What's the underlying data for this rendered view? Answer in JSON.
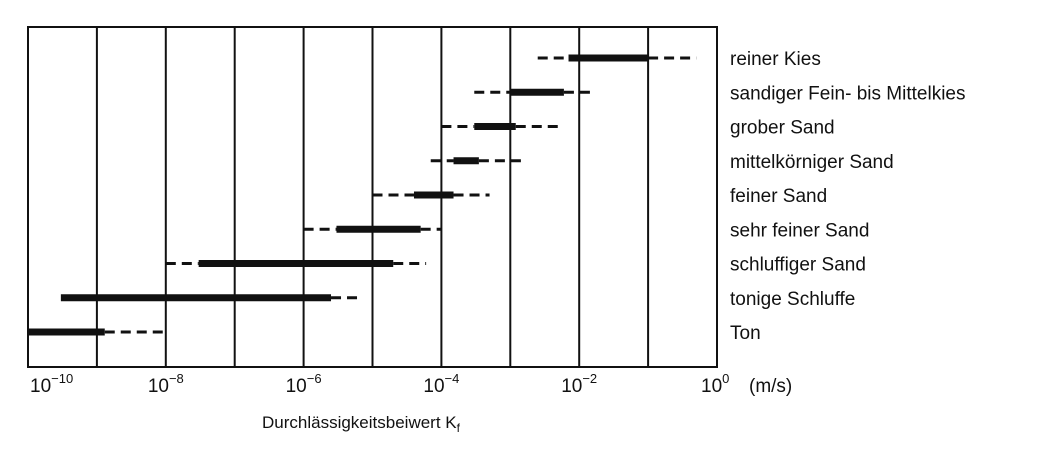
{
  "chart_data": {
    "type": "range",
    "title": "",
    "xlabel": "Durchlässigkeitsbeiwert Kf",
    "x_scale": "log10",
    "xlim": [
      1e-10,
      1
    ],
    "x_unit": "(m/s)",
    "x_ticks": [
      {
        "base": "10",
        "exp": "−10",
        "value": 1e-10
      },
      {
        "base": "10",
        "exp": "−8",
        "value": 1e-08
      },
      {
        "base": "10",
        "exp": "−6",
        "value": 1e-06
      },
      {
        "base": "10",
        "exp": "−4",
        "value": 0.0001
      },
      {
        "base": "10",
        "exp": "−2",
        "value": 0.01
      },
      {
        "base": "10",
        "exp": "0",
        "value": 1
      }
    ],
    "grid": true,
    "legend": "none",
    "categories": [
      {
        "label": "reiner Kies",
        "dashed": [
          [
            0.0025,
            0.007
          ],
          [
            0.1,
            0.5
          ]
        ],
        "solid": [
          0.007,
          0.1
        ]
      },
      {
        "label": "sandiger Fein- bis Mittelkies",
        "dashed": [
          [
            0.0003,
            0.001
          ],
          [
            0.006,
            0.015
          ]
        ],
        "solid": [
          0.001,
          0.006
        ]
      },
      {
        "label": "grober Sand",
        "dashed": [
          [
            0.0001,
            0.0003
          ],
          [
            0.0012,
            0.005
          ]
        ],
        "solid": [
          0.0003,
          0.0012
        ]
      },
      {
        "label": "mittelkörniger Sand",
        "dashed": [
          [
            7e-05,
            0.00015
          ],
          [
            0.00035,
            0.0015
          ]
        ],
        "solid": [
          0.00015,
          0.00035
        ]
      },
      {
        "label": "feiner Sand",
        "dashed": [
          [
            1e-05,
            4e-05
          ],
          [
            0.00015,
            0.0005
          ]
        ],
        "solid": [
          4e-05,
          0.00015
        ]
      },
      {
        "label": "sehr feiner Sand",
        "dashed": [
          [
            1e-06,
            3e-06
          ],
          [
            5e-05,
            0.0001
          ]
        ],
        "solid": [
          3e-06,
          5e-05
        ]
      },
      {
        "label": "schluffiger Sand",
        "dashed": [
          [
            1e-08,
            3e-08
          ],
          [
            2e-05,
            6e-05
          ]
        ],
        "solid": [
          3e-08,
          2e-05
        ]
      },
      {
        "label": "tonige Schluffe",
        "dashed": [
          [
            2.5e-06,
            6e-06
          ]
        ],
        "solid": [
          3e-10,
          2.5e-06
        ]
      },
      {
        "label": "Ton",
        "dashed": [
          [
            1.3e-09,
            1e-08
          ]
        ],
        "solid": [
          1e-10,
          1.3e-09
        ]
      }
    ]
  }
}
